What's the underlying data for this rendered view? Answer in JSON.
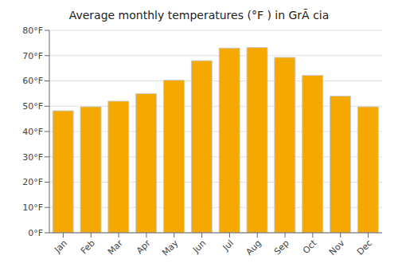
{
  "chart_data": {
    "type": "bar",
    "title": "Average monthly temperatures (°F ) in GrÃ cia",
    "categories": [
      "Jan",
      "Feb",
      "Mar",
      "Apr",
      "May",
      "Jun",
      "Jul",
      "Aug",
      "Sep",
      "Oct",
      "Nov",
      "Dec"
    ],
    "values": [
      48.2,
      49.8,
      52.0,
      55.0,
      60.3,
      68.0,
      73.0,
      73.2,
      69.3,
      62.2,
      54.0,
      49.8
    ],
    "color": "#F5A800",
    "ylim": [
      0,
      80
    ],
    "yticks": [
      {
        "value": 0,
        "label": "0°F"
      },
      {
        "value": 10,
        "label": "10°F"
      },
      {
        "value": 20,
        "label": "20°F"
      },
      {
        "value": 30,
        "label": "30°F"
      },
      {
        "value": 40,
        "label": "40°F"
      },
      {
        "value": 50,
        "label": "50°F"
      },
      {
        "value": 60,
        "label": "60°F"
      },
      {
        "value": 70,
        "label": "70°F"
      },
      {
        "value": 80,
        "label": "80°F"
      }
    ],
    "grid": true
  }
}
